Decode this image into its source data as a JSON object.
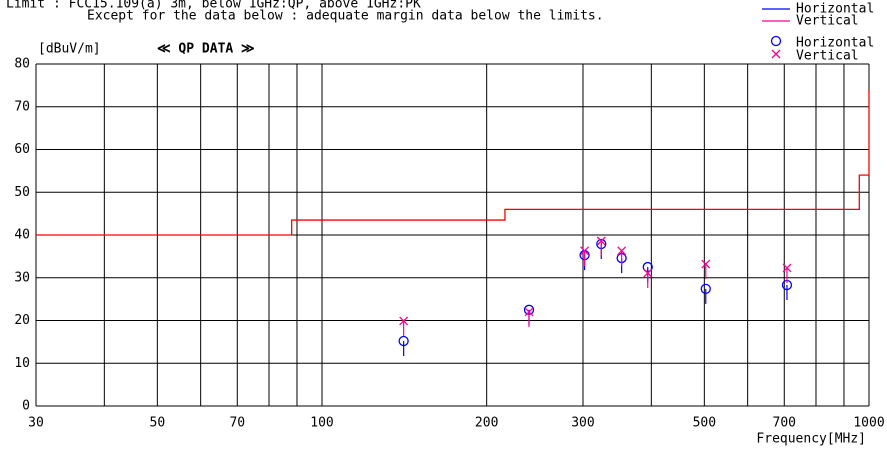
{
  "chart_data": {
    "type": "emission",
    "notes": [
      "Limit : FCC15.109(a) 3m, below 1GHz:QP, above 1GHz:PK",
      "Except for the  data below : adequate margin data below the limits."
    ],
    "title": "≪ QP DATA ≫",
    "ylabel": "[dBuV/m]",
    "xlabel": "Frequency[MHz]",
    "log_x": true,
    "xlim": [
      30,
      1000
    ],
    "ylim": [
      0,
      80
    ],
    "xticks": [
      30,
      50,
      70,
      100,
      200,
      300,
      500,
      700,
      1000
    ],
    "xgrid_minor": [
      40,
      60,
      80,
      90,
      400,
      600,
      800,
      900
    ],
    "yticks": [
      0,
      10,
      20,
      30,
      40,
      50,
      60,
      70,
      80
    ],
    "grid": true,
    "limit": {
      "color": "#ff0000",
      "x": [
        30,
        88,
        88,
        216,
        216,
        960,
        960,
        1000,
        1000
      ],
      "values": [
        40,
        40,
        43.5,
        43.5,
        46,
        46,
        54,
        54,
        74
      ]
    },
    "series": [
      {
        "name": "Horizontal",
        "color": "#0000ff",
        "marker": "line"
      },
      {
        "name": "Vertical",
        "color": "#ff0090",
        "marker": "line"
      },
      {
        "name": "Horizontal",
        "color": "#0000ff",
        "marker": "circle",
        "x": [
          141,
          239,
          302,
          324,
          353,
          394,
          503,
          708
        ],
        "values": [
          15.2,
          22.5,
          35.3,
          37.9,
          34.6,
          32.5,
          27.4,
          28.3
        ]
      },
      {
        "name": "Vertical",
        "color": "#ff0090",
        "marker": "cross",
        "x": [
          141,
          239,
          302,
          324,
          353,
          394,
          503,
          708
        ],
        "values": [
          19.9,
          22.0,
          36.3,
          38.6,
          36.3,
          31.1,
          33.2,
          32.3
        ]
      }
    ]
  }
}
